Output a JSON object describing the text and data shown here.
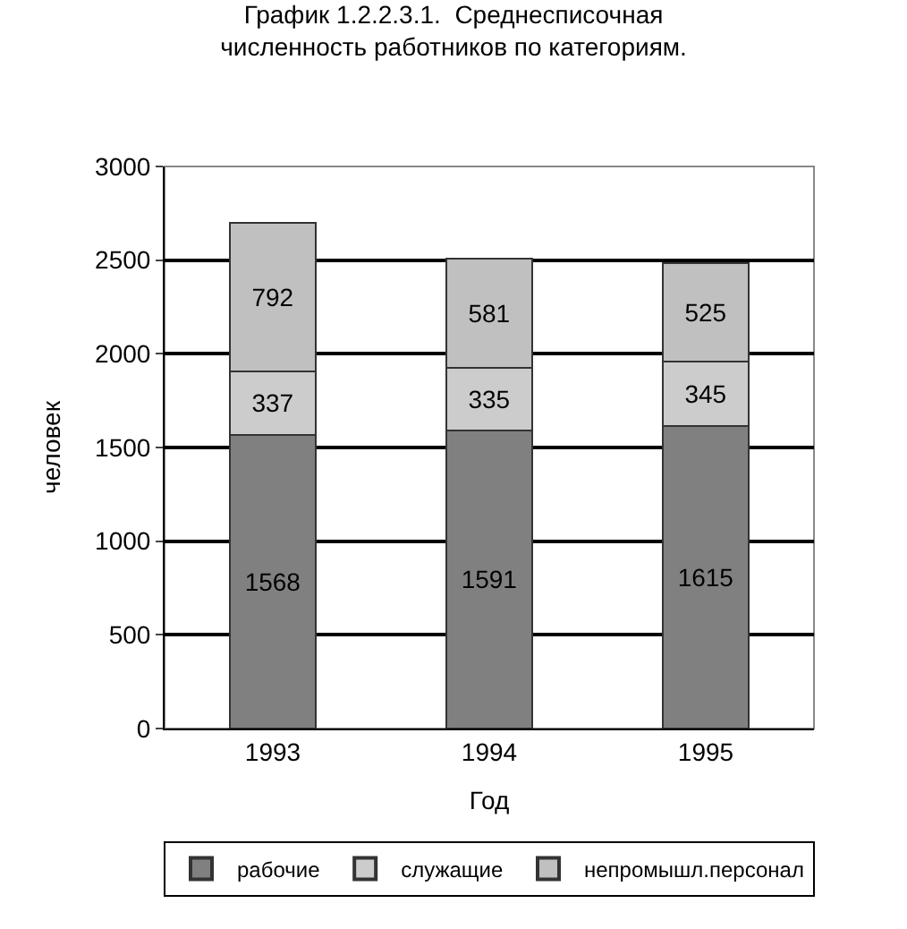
{
  "chart_data": {
    "type": "bar",
    "stacked": true,
    "title": "График 1.2.2.3.1.  Среднесписочная\nчисленность работников по категориям.",
    "xlabel": "Год",
    "ylabel": "человек",
    "categories": [
      "1993",
      "1994",
      "1995"
    ],
    "series": [
      {
        "name": "рабочие",
        "color": "#808080",
        "values": [
          1568,
          1591,
          1615
        ]
      },
      {
        "name": "служащие",
        "color": "#cccccc",
        "values": [
          337,
          335,
          345
        ]
      },
      {
        "name": "непромышл.персонал",
        "color": "#c0c0c0",
        "values": [
          792,
          581,
          525
        ]
      }
    ],
    "ylim": [
      0,
      3000
    ],
    "yticks": [
      0,
      500,
      1000,
      1500,
      2000,
      2500,
      3000
    ],
    "grid": "y",
    "legend": "bottom",
    "data_labels": true
  }
}
